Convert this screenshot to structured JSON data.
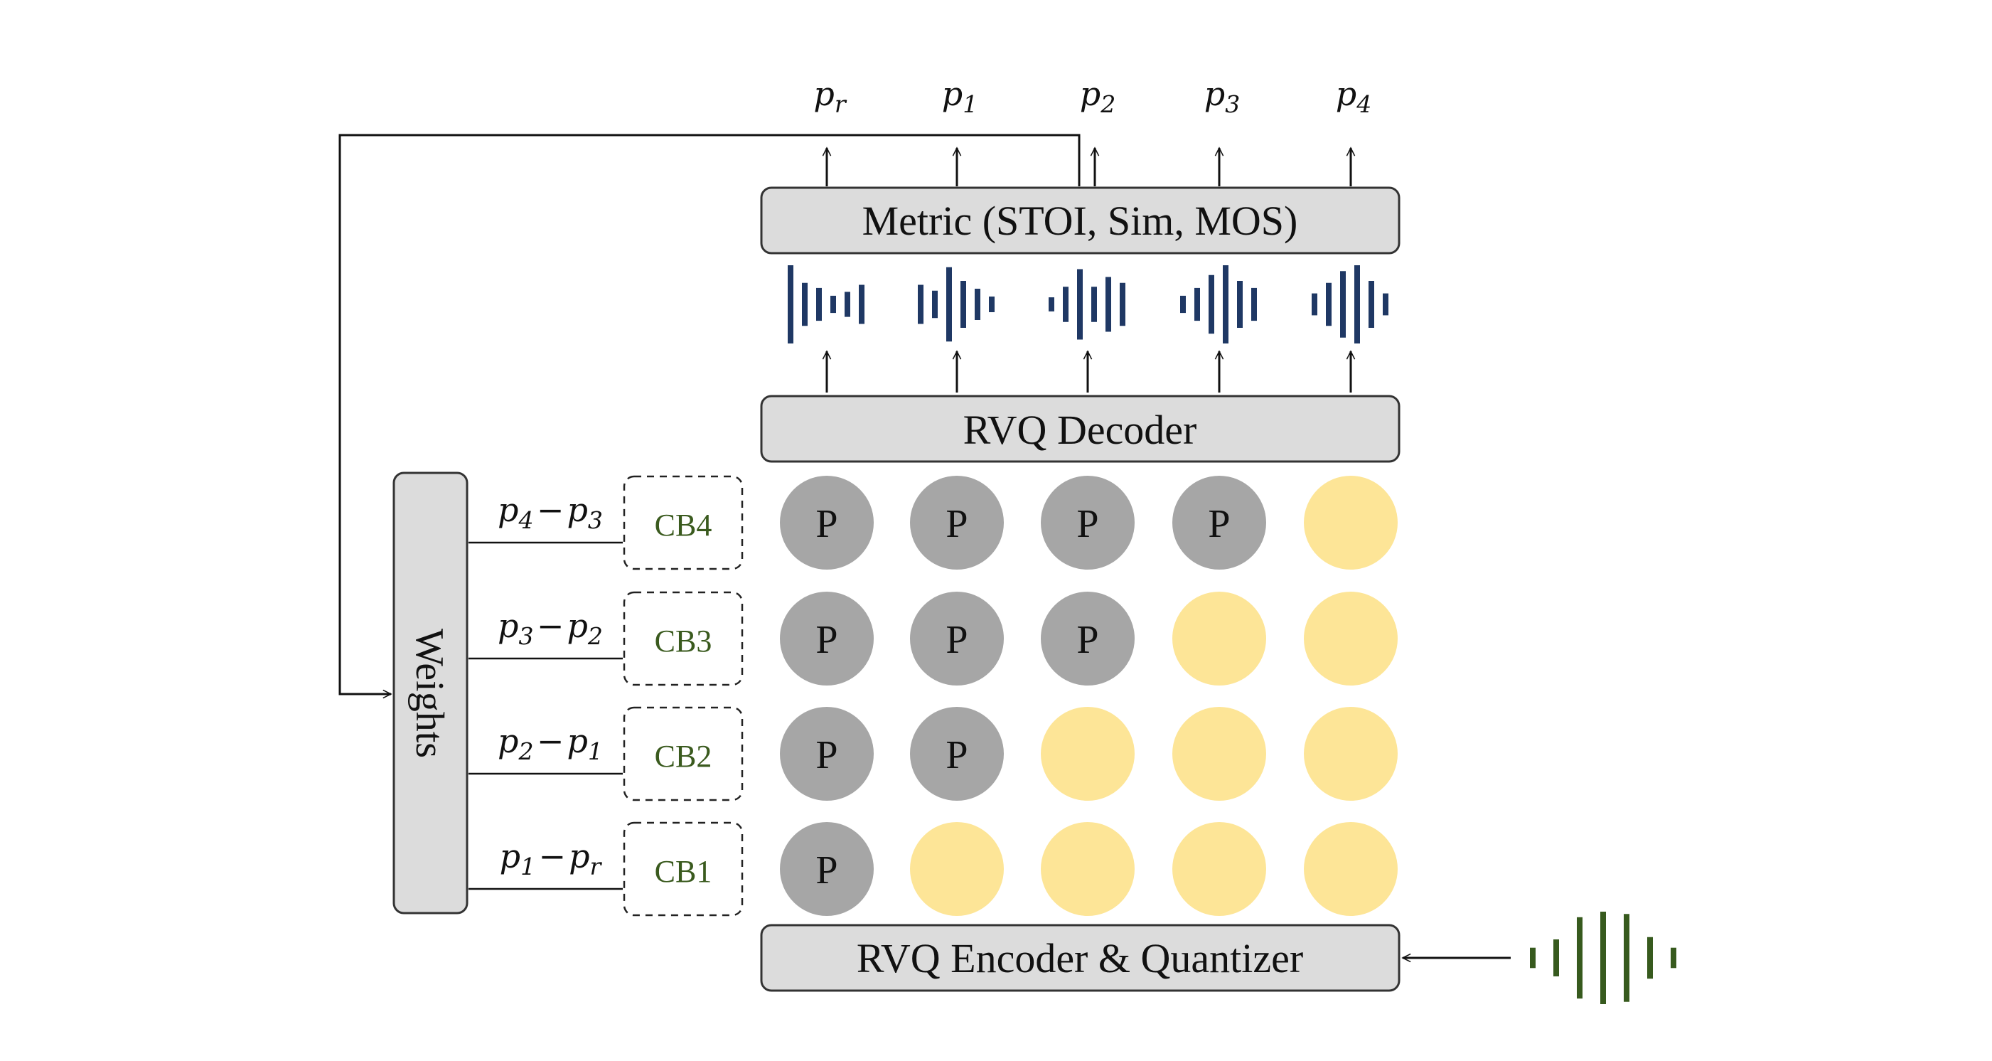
{
  "colors": {
    "box_fill": "#dcdcdc",
    "box_stroke": "#333333",
    "token_p": "#a6a6a6",
    "token_empty": "#fde597",
    "wave_blue": "#1f3864",
    "wave_green": "#375a1e",
    "cb_text": "#3a5a1e"
  },
  "outputs": [
    "p_r",
    "p_1",
    "p_2",
    "p_3",
    "p_4"
  ],
  "metric_box": "Metric (STOI, Sim, MOS)",
  "decoder_box": "RVQ Decoder",
  "encoder_box": "RVQ Encoder & Quantizer",
  "weights_box": "Weights",
  "token_label": "P",
  "rows": [
    {
      "diff": "p_4−p_3",
      "codebook": "CB4",
      "filled": 4
    },
    {
      "diff": "p_3−p_2",
      "codebook": "CB3",
      "filled": 3
    },
    {
      "diff": "p_2−p_1",
      "codebook": "CB2",
      "filled": 2
    },
    {
      "diff": "p_1−p_r",
      "codebook": "CB1",
      "filled": 1
    }
  ],
  "token_columns": 5,
  "icons": [
    "waveform-icon",
    "input-waveform-icon",
    "arrow-icon"
  ]
}
